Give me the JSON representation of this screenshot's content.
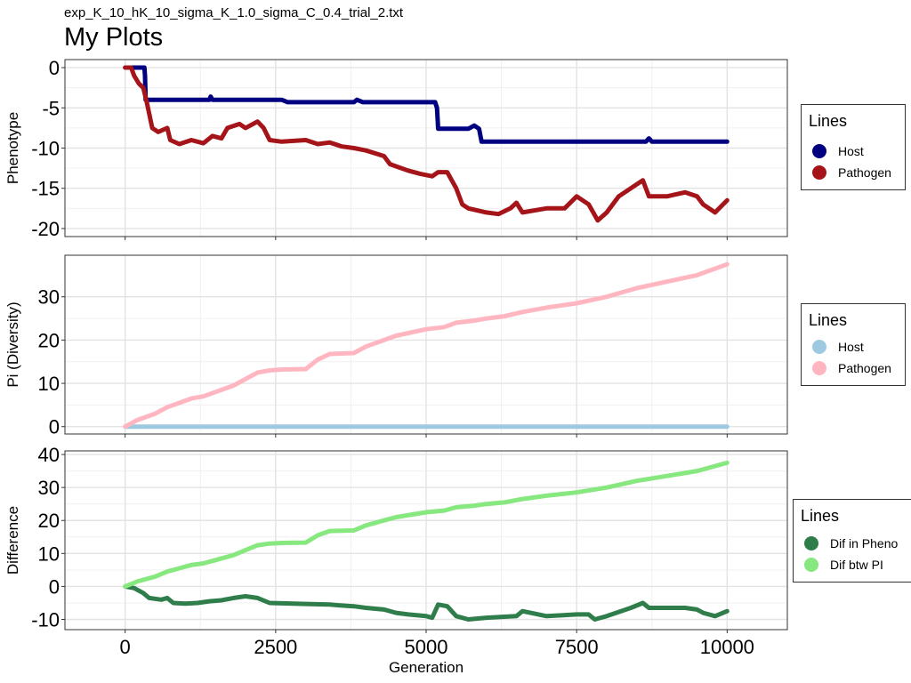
{
  "subtitle": "exp_K_10_hK_10_sigma_K_1.0_sigma_C_0.4_trial_2.txt",
  "title": "My Plots",
  "chart_data": [
    {
      "type": "line",
      "ylabel": "Phenotype",
      "xlabel": "",
      "xlim": [
        -1000,
        11000
      ],
      "ylim": [
        -21,
        1
      ],
      "yticks": [
        0,
        -5,
        -10,
        -15,
        -20
      ],
      "yticklabels": [
        "0",
        "-5",
        "-10",
        "-15",
        "-20"
      ],
      "xticks": [
        0,
        2500,
        5000,
        7500,
        10000
      ],
      "xticklabels": [],
      "legend": {
        "title": "Lines",
        "position": "right"
      },
      "series": [
        {
          "name": "Host",
          "color": "#000080",
          "points": [
            [
              0,
              0
            ],
            [
              280,
              0
            ],
            [
              320,
              0
            ],
            [
              330,
              -1
            ],
            [
              340,
              -4
            ],
            [
              1400,
              -4
            ],
            [
              1420,
              -3.6
            ],
            [
              1450,
              -4
            ],
            [
              2600,
              -4
            ],
            [
              2700,
              -4.3
            ],
            [
              3800,
              -4.3
            ],
            [
              3850,
              -4
            ],
            [
              3950,
              -4.3
            ],
            [
              5150,
              -4.3
            ],
            [
              5180,
              -5
            ],
            [
              5200,
              -7.6
            ],
            [
              5700,
              -7.6
            ],
            [
              5800,
              -7.2
            ],
            [
              5880,
              -7.6
            ],
            [
              5920,
              -9.2
            ],
            [
              8650,
              -9.2
            ],
            [
              8700,
              -8.8
            ],
            [
              8750,
              -9.2
            ],
            [
              10000,
              -9.2
            ]
          ]
        },
        {
          "name": "Pathogen",
          "color": "#a51419",
          "points": [
            [
              0,
              0
            ],
            [
              100,
              0
            ],
            [
              150,
              -1
            ],
            [
              230,
              -2
            ],
            [
              300,
              -2.5
            ],
            [
              350,
              -4
            ],
            [
              450,
              -7.5
            ],
            [
              550,
              -8
            ],
            [
              700,
              -7.5
            ],
            [
              750,
              -9
            ],
            [
              900,
              -9.5
            ],
            [
              1100,
              -9
            ],
            [
              1300,
              -9.4
            ],
            [
              1450,
              -8.5
            ],
            [
              1600,
              -8.8
            ],
            [
              1700,
              -7.5
            ],
            [
              1900,
              -7
            ],
            [
              2000,
              -7.5
            ],
            [
              2200,
              -6.7
            ],
            [
              2300,
              -7.5
            ],
            [
              2400,
              -9
            ],
            [
              2600,
              -9.2
            ],
            [
              3000,
              -9
            ],
            [
              3200,
              -9.5
            ],
            [
              3400,
              -9.3
            ],
            [
              3600,
              -9.8
            ],
            [
              3800,
              -10
            ],
            [
              4000,
              -10.3
            ],
            [
              4300,
              -11
            ],
            [
              4400,
              -12
            ],
            [
              4700,
              -12.8
            ],
            [
              4900,
              -13.2
            ],
            [
              5100,
              -13.5
            ],
            [
              5200,
              -13
            ],
            [
              5350,
              -13
            ],
            [
              5500,
              -15
            ],
            [
              5600,
              -17
            ],
            [
              5700,
              -17.5
            ],
            [
              6000,
              -18
            ],
            [
              6200,
              -18.2
            ],
            [
              6400,
              -17.5
            ],
            [
              6500,
              -16.8
            ],
            [
              6600,
              -18
            ],
            [
              7000,
              -17.5
            ],
            [
              7300,
              -17.5
            ],
            [
              7500,
              -16
            ],
            [
              7700,
              -17
            ],
            [
              7850,
              -19
            ],
            [
              8000,
              -18
            ],
            [
              8200,
              -16
            ],
            [
              8400,
              -15
            ],
            [
              8600,
              -14
            ],
            [
              8700,
              -16
            ],
            [
              9000,
              -16
            ],
            [
              9300,
              -15.5
            ],
            [
              9500,
              -16
            ],
            [
              9600,
              -17
            ],
            [
              9800,
              -18
            ],
            [
              10000,
              -16.5
            ]
          ]
        }
      ]
    },
    {
      "type": "line",
      "ylabel": "Pi (Diversity)",
      "xlabel": "",
      "xlim": [
        -1000,
        11000
      ],
      "ylim": [
        -1.7,
        39.6
      ],
      "yticks": [
        0,
        10,
        20,
        30
      ],
      "yticklabels": [
        "0",
        "10",
        "20",
        "30"
      ],
      "xticks": [
        0,
        2500,
        5000,
        7500,
        10000
      ],
      "xticklabels": [],
      "legend": {
        "title": "Lines",
        "position": "right"
      },
      "series": [
        {
          "name": "Host",
          "color": "#9ecae1",
          "points": [
            [
              0,
              0
            ],
            [
              10000,
              0
            ]
          ]
        },
        {
          "name": "Pathogen",
          "color": "#ffb6c1",
          "points": [
            [
              0,
              0
            ],
            [
              200,
              1.5
            ],
            [
              500,
              3
            ],
            [
              700,
              4.5
            ],
            [
              900,
              5.5
            ],
            [
              1100,
              6.5
            ],
            [
              1300,
              7
            ],
            [
              1500,
              8
            ],
            [
              1800,
              9.5
            ],
            [
              2000,
              11
            ],
            [
              2200,
              12.5
            ],
            [
              2400,
              13
            ],
            [
              2600,
              13.2
            ],
            [
              3000,
              13.3
            ],
            [
              3200,
              15.5
            ],
            [
              3400,
              16.8
            ],
            [
              3800,
              17
            ],
            [
              4000,
              18.5
            ],
            [
              4300,
              20
            ],
            [
              4500,
              21
            ],
            [
              5000,
              22.5
            ],
            [
              5300,
              23
            ],
            [
              5500,
              24
            ],
            [
              5800,
              24.5
            ],
            [
              6000,
              25
            ],
            [
              6300,
              25.5
            ],
            [
              6600,
              26.5
            ],
            [
              7000,
              27.5
            ],
            [
              7500,
              28.5
            ],
            [
              8000,
              30
            ],
            [
              8500,
              32
            ],
            [
              9000,
              33.5
            ],
            [
              9500,
              35
            ],
            [
              10000,
              37.5
            ]
          ]
        }
      ]
    },
    {
      "type": "line",
      "ylabel": "Difference",
      "xlabel": "Generation",
      "xlim": [
        -1000,
        11000
      ],
      "ylim": [
        -13.1,
        41.1
      ],
      "yticks": [
        40,
        30,
        20,
        10,
        0,
        -10
      ],
      "yticklabels": [
        "40",
        "30",
        "20",
        "10",
        "0",
        "-10"
      ],
      "xticks": [
        0,
        2500,
        5000,
        7500,
        10000
      ],
      "xticklabels": [
        "0",
        "2500",
        "5000",
        "7500",
        "10000"
      ],
      "legend": {
        "title": "Lines",
        "position": "right"
      },
      "series": [
        {
          "name": "Dif in Pheno",
          "color": "#2e7d4a",
          "points": [
            [
              0,
              0
            ],
            [
              150,
              -0.5
            ],
            [
              300,
              -2
            ],
            [
              400,
              -3.5
            ],
            [
              600,
              -4
            ],
            [
              700,
              -3.5
            ],
            [
              800,
              -5
            ],
            [
              1000,
              -5.2
            ],
            [
              1200,
              -5
            ],
            [
              1400,
              -4.5
            ],
            [
              1600,
              -4.2
            ],
            [
              1800,
              -3.5
            ],
            [
              2000,
              -3
            ],
            [
              2200,
              -3.5
            ],
            [
              2400,
              -5
            ],
            [
              3000,
              -5.3
            ],
            [
              3400,
              -5.5
            ],
            [
              3600,
              -5.8
            ],
            [
              3800,
              -6
            ],
            [
              4000,
              -6.5
            ],
            [
              4300,
              -7
            ],
            [
              4500,
              -8
            ],
            [
              4700,
              -8.5
            ],
            [
              5000,
              -9
            ],
            [
              5100,
              -9.5
            ],
            [
              5200,
              -5.5
            ],
            [
              5350,
              -6
            ],
            [
              5500,
              -9
            ],
            [
              5700,
              -10
            ],
            [
              6000,
              -9.5
            ],
            [
              6500,
              -9
            ],
            [
              6600,
              -7.5
            ],
            [
              7000,
              -9
            ],
            [
              7500,
              -8.5
            ],
            [
              7700,
              -8.5
            ],
            [
              7800,
              -10
            ],
            [
              8000,
              -9
            ],
            [
              8400,
              -6.5
            ],
            [
              8600,
              -5
            ],
            [
              8700,
              -6.5
            ],
            [
              9300,
              -6.5
            ],
            [
              9500,
              -7
            ],
            [
              9600,
              -8
            ],
            [
              9800,
              -9
            ],
            [
              10000,
              -7.5
            ]
          ]
        },
        {
          "name": "Dif btw PI",
          "color": "#86e87e",
          "points": [
            [
              0,
              0
            ],
            [
              200,
              1.5
            ],
            [
              500,
              3
            ],
            [
              700,
              4.5
            ],
            [
              900,
              5.5
            ],
            [
              1100,
              6.5
            ],
            [
              1300,
              7
            ],
            [
              1500,
              8
            ],
            [
              1800,
              9.5
            ],
            [
              2000,
              11
            ],
            [
              2200,
              12.5
            ],
            [
              2400,
              13
            ],
            [
              2600,
              13.2
            ],
            [
              3000,
              13.3
            ],
            [
              3200,
              15.5
            ],
            [
              3400,
              16.8
            ],
            [
              3800,
              17
            ],
            [
              4000,
              18.5
            ],
            [
              4300,
              20
            ],
            [
              4500,
              21
            ],
            [
              5000,
              22.5
            ],
            [
              5300,
              23
            ],
            [
              5500,
              24
            ],
            [
              5800,
              24.5
            ],
            [
              6000,
              25
            ],
            [
              6300,
              25.5
            ],
            [
              6600,
              26.5
            ],
            [
              7000,
              27.5
            ],
            [
              7500,
              28.5
            ],
            [
              8000,
              30
            ],
            [
              8500,
              32
            ],
            [
              9000,
              33.5
            ],
            [
              9500,
              35
            ],
            [
              10000,
              37.5
            ]
          ]
        }
      ]
    }
  ]
}
